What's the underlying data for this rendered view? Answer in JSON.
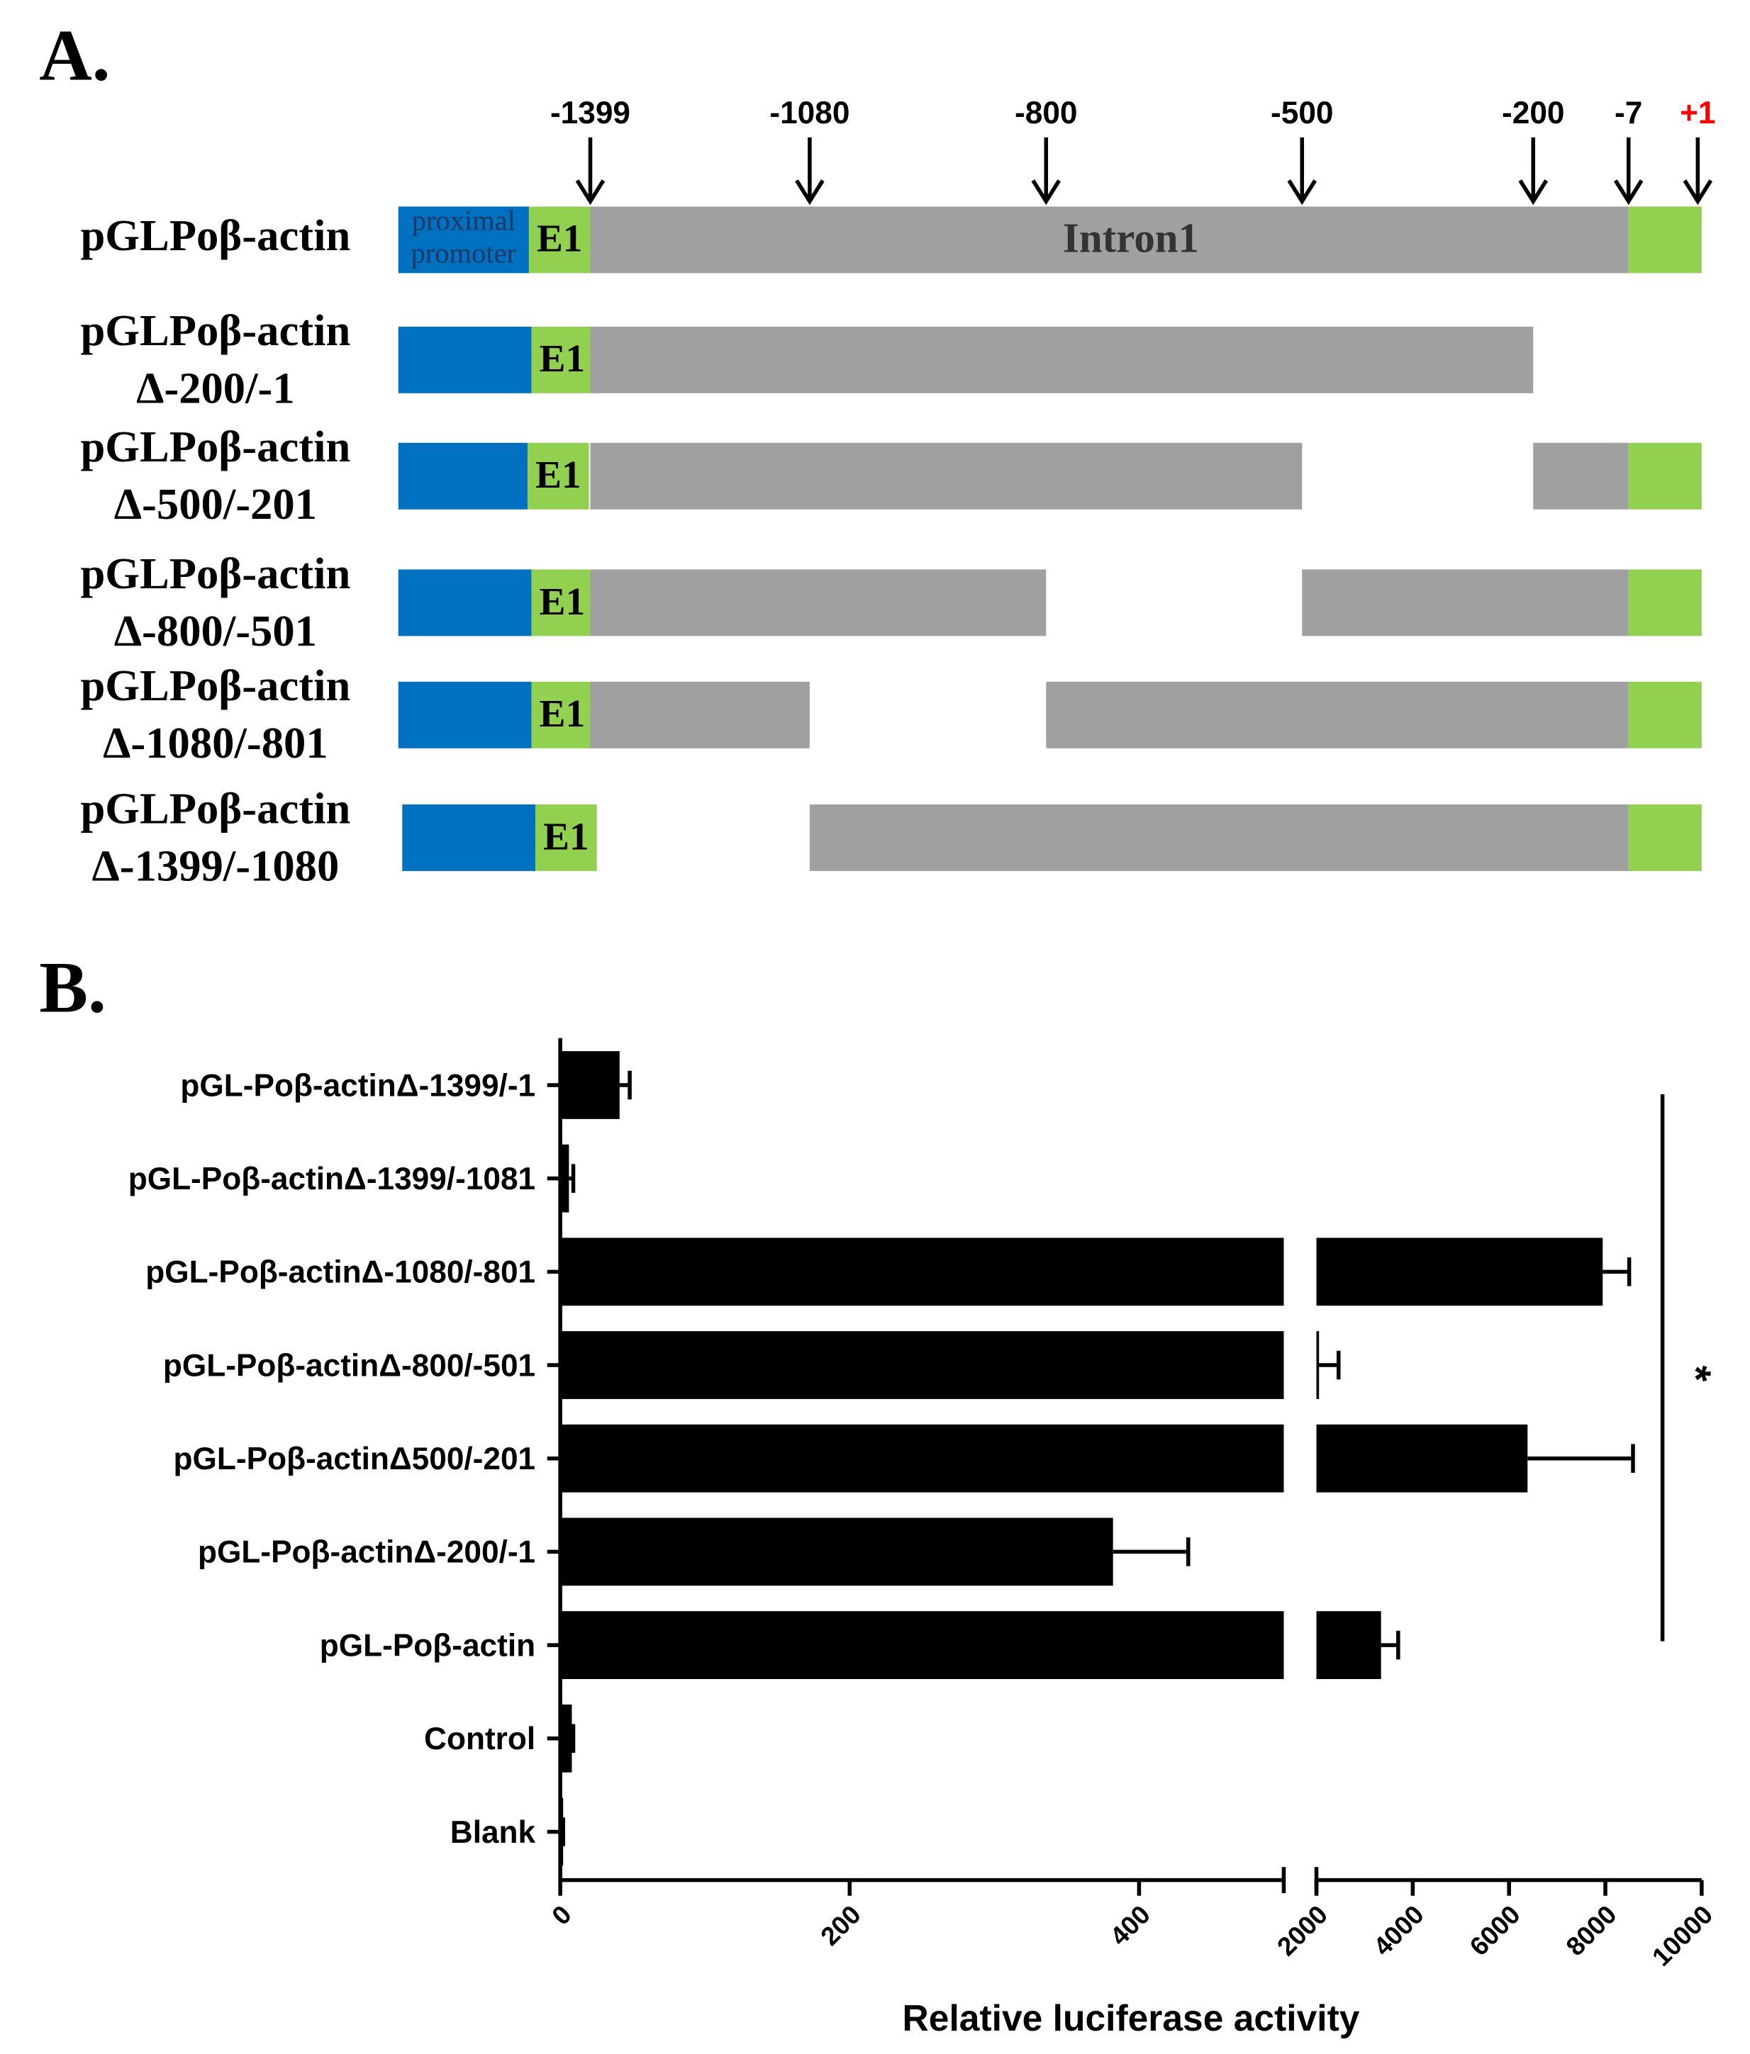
{
  "panel_a": {
    "label": "A.",
    "markers": [
      {
        "text": "-1399",
        "color": "#000000"
      },
      {
        "text": "-1080",
        "color": "#000000"
      },
      {
        "text": "-800",
        "color": "#000000"
      },
      {
        "text": "-500",
        "color": "#000000"
      },
      {
        "text": "-200",
        "color": "#000000"
      },
      {
        "text": "-7",
        "color": "#000000"
      },
      {
        "text": "+1",
        "color": "#ff0000"
      }
    ],
    "promoter_label": [
      "proximal",
      "promoter"
    ],
    "intron_label": "Intron1",
    "constructs": [
      {
        "name": [
          "pGLPoβ-actin"
        ],
        "exon": "E1"
      },
      {
        "name": [
          "pGLPoβ-actin",
          "Δ-200/-1"
        ],
        "exon": "E1"
      },
      {
        "name": [
          "pGLPoβ-actin",
          "Δ-500/-201"
        ],
        "exon": "E1"
      },
      {
        "name": [
          "pGLPoβ-actin",
          "Δ-800/-501"
        ],
        "exon": "E1"
      },
      {
        "name": [
          "pGLPoβ-actin",
          "Δ-1080/-801"
        ],
        "exon": "E1"
      },
      {
        "name": [
          "pGLPoβ-actin",
          "Δ-1399/-1080"
        ],
        "exon": "E1"
      }
    ]
  },
  "chart_data": {
    "type": "bar",
    "orientation": "horizontal",
    "label": "B.",
    "xlabel": "Relative luciferase activity",
    "categories": [
      "pGL-Poβ-actinΔ-1399/-1",
      "pGL-Poβ-actinΔ-1399/-1081",
      "pGL-Poβ-actinΔ-1080/-801",
      "pGL-Poβ-actinΔ-800/-501",
      "pGL-Poβ-actinΔ500/-201",
      "pGL-Poβ-actinΔ-200/-1",
      "pGL-Poβ-actin",
      "Control",
      "Blank"
    ],
    "values": [
      41,
      6,
      7945,
      2050,
      6384,
      382,
      3342,
      8,
      2
    ],
    "errors": [
      7,
      3,
      550,
      410,
      2190,
      52,
      356,
      1,
      0
    ],
    "color": "#000000",
    "x_segments": [
      {
        "xlim": [
          0,
          500
        ],
        "xticks": [
          0,
          200,
          400
        ]
      },
      {
        "xlim": [
          2000,
          10000
        ],
        "xticks": [
          2000,
          4000,
          6000,
          8000,
          10000
        ]
      }
    ],
    "significance": "*"
  }
}
